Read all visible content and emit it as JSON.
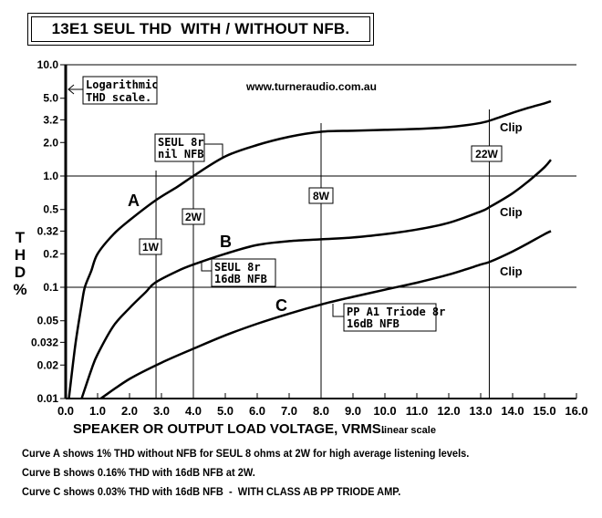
{
  "title": "13E1 SEUL THD  WITH / WITHOUT NFB.",
  "website": "www.turneraudio.com.au",
  "log_note": [
    "Logarithmic",
    "THD scale."
  ],
  "y_axis_label": [
    "T",
    "H",
    "D",
    "%"
  ],
  "x_axis_label": "SPEAKER OR OUTPUT LOAD VOLTAGE, VRMS.",
  "x_axis_note": "linear scale",
  "notes": [
    "Curve A shows 1% THD without NFB for SEUL 8 ohms at 2W for high average listening levels.",
    "Curve B shows 0.16% THD with 16dB NFB at 2W.",
    "Curve C shows 0.03% THD with 16dB NFB  -  WITH CLASS AB PP TRIODE AMP."
  ],
  "chart_data": {
    "type": "line",
    "title": "13E1 SEUL THD  WITH / WITHOUT NFB.",
    "xlabel": "SPEAKER OR OUTPUT LOAD VOLTAGE, VRMS. (linear scale)",
    "ylabel": "THD %",
    "xlim": [
      0,
      16
    ],
    "ylim": [
      0.01,
      10.0
    ],
    "yscale": "log",
    "x_ticks": [
      "0.0",
      "1.0",
      "2.0",
      "3.0",
      "4.0",
      "5.0",
      "6.0",
      "7.0",
      "8.0",
      "9.0",
      "10.0",
      "11.0",
      "12.0",
      "13.0",
      "14.0",
      "15.0",
      "16.0"
    ],
    "y_ticks": [
      {
        "value": 10.0,
        "label": "10.0"
      },
      {
        "value": 5.0,
        "label": "5.0"
      },
      {
        "value": 3.2,
        "label": "3.2"
      },
      {
        "value": 2.0,
        "label": "2.0"
      },
      {
        "value": 1.0,
        "label": "1.0"
      },
      {
        "value": 0.5,
        "label": "0.5"
      },
      {
        "value": 0.32,
        "label": "0.32"
      },
      {
        "value": 0.2,
        "label": "0.2"
      },
      {
        "value": 0.1,
        "label": "0.1"
      },
      {
        "value": 0.05,
        "label": "0.05"
      },
      {
        "value": 0.032,
        "label": "0.032"
      },
      {
        "value": 0.02,
        "label": "0.02"
      },
      {
        "value": 0.01,
        "label": "0.01"
      }
    ],
    "gridlines_y": [
      1.0,
      0.1
    ],
    "power_markers": [
      {
        "label": "1W",
        "x": 2.83
      },
      {
        "label": "2W",
        "x": 4.0
      },
      {
        "label": "8W",
        "x": 8.0
      },
      {
        "label": "22W",
        "x": 13.27
      }
    ],
    "series": [
      {
        "name": "A",
        "label": "SEUL 8r nil NFB",
        "x": [
          0.1,
          0.3,
          0.5,
          0.6,
          0.8,
          1.0,
          1.5,
          2.0,
          2.8,
          3.5,
          4.0,
          5.0,
          6.0,
          7.0,
          8.0,
          9.0,
          10.0,
          11.0,
          12.0,
          13.0,
          13.5,
          14.0,
          14.5,
          15.0,
          15.2
        ],
        "values": [
          0.01,
          0.03,
          0.07,
          0.1,
          0.14,
          0.2,
          0.3,
          0.4,
          0.6,
          0.8,
          1.0,
          1.5,
          1.9,
          2.25,
          2.5,
          2.55,
          2.6,
          2.65,
          2.75,
          3.0,
          3.3,
          3.7,
          4.1,
          4.5,
          4.7
        ]
      },
      {
        "name": "B",
        "label": "SEUL 8r 16dB NFB",
        "x": [
          0.5,
          0.8,
          1.0,
          1.5,
          2.0,
          2.5,
          2.8,
          3.5,
          4.0,
          5.0,
          6.0,
          7.0,
          8.0,
          9.0,
          10.0,
          11.0,
          12.0,
          13.0,
          13.3,
          14.0,
          14.5,
          15.0,
          15.2
        ],
        "values": [
          0.01,
          0.018,
          0.025,
          0.045,
          0.065,
          0.09,
          0.11,
          0.14,
          0.16,
          0.2,
          0.24,
          0.26,
          0.27,
          0.28,
          0.3,
          0.33,
          0.38,
          0.48,
          0.53,
          0.7,
          0.9,
          1.2,
          1.4
        ]
      },
      {
        "name": "C",
        "label": "PP A1 Triode 8r 16dB NFB",
        "x": [
          1.1,
          2.0,
          3.0,
          4.0,
          5.0,
          6.0,
          7.0,
          8.0,
          9.0,
          10.0,
          11.0,
          12.0,
          13.0,
          13.3,
          14.0,
          14.5,
          15.0,
          15.2
        ],
        "values": [
          0.01,
          0.015,
          0.021,
          0.028,
          0.037,
          0.047,
          0.058,
          0.07,
          0.082,
          0.095,
          0.11,
          0.13,
          0.16,
          0.17,
          0.21,
          0.25,
          0.3,
          0.32
        ]
      }
    ],
    "annotations": [
      {
        "text": "A",
        "x": 2.2,
        "y": 0.6
      },
      {
        "text": "B",
        "x": 4.9,
        "y": 0.26
      },
      {
        "text": "C",
        "x": 6.9,
        "y": 0.06
      },
      {
        "text": "Clip",
        "x": 14.2,
        "y": 2.6
      },
      {
        "text": "Clip",
        "x": 14.2,
        "y": 0.58
      },
      {
        "text": "Clip",
        "x": 14.2,
        "y": 0.18
      }
    ]
  }
}
